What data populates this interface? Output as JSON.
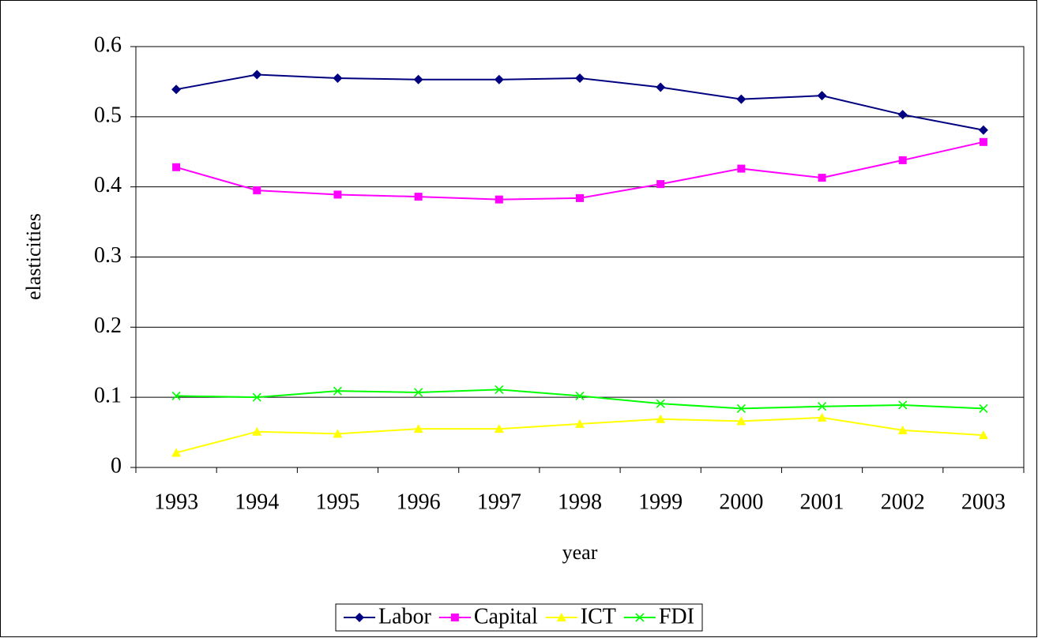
{
  "chart_data": {
    "type": "line",
    "x_label": "year",
    "y_label": "elasticities",
    "categories": [
      "1993",
      "1994",
      "1995",
      "1996",
      "1997",
      "1998",
      "1999",
      "2000",
      "2001",
      "2002",
      "2003"
    ],
    "series": [
      {
        "name": "Labor",
        "color": "#000080",
        "marker": "diamond",
        "values": [
          0.539,
          0.56,
          0.555,
          0.553,
          0.553,
          0.555,
          0.542,
          0.525,
          0.53,
          0.503,
          0.481
        ]
      },
      {
        "name": "Capital",
        "color": "#ff00ff",
        "marker": "square",
        "values": [
          0.428,
          0.395,
          0.389,
          0.386,
          0.382,
          0.384,
          0.404,
          0.426,
          0.413,
          0.438,
          0.464
        ]
      },
      {
        "name": "ICT",
        "color": "#ffff00",
        "marker": "triangle",
        "values": [
          0.021,
          0.051,
          0.048,
          0.055,
          0.055,
          0.062,
          0.069,
          0.066,
          0.071,
          0.053,
          0.046
        ]
      },
      {
        "name": "FDI",
        "color": "#00ff00",
        "marker": "x",
        "values": [
          0.102,
          0.1,
          0.109,
          0.107,
          0.111,
          0.102,
          0.091,
          0.084,
          0.087,
          0.089,
          0.084
        ]
      }
    ],
    "ylim": [
      0,
      0.6
    ],
    "yticks": [
      0,
      0.1,
      0.2,
      0.3,
      0.4,
      0.5,
      0.6
    ],
    "grid": true,
    "legend": "bottom"
  }
}
